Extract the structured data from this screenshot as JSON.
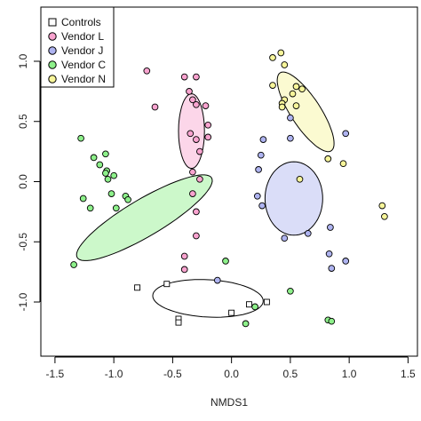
{
  "chart_data": {
    "type": "scatter",
    "xlabel": "NMDS1",
    "ylabel": "",
    "xlim": [
      -1.62,
      1.58
    ],
    "ylim": [
      -1.45,
      1.45
    ],
    "x_ticks": [
      -1.5,
      -1.0,
      -0.5,
      0.0,
      0.5,
      1.0,
      1.5
    ],
    "x_tick_labels": [
      "-1.5",
      "-1.0",
      "-0.5",
      "0.0",
      "0.5",
      "1.0",
      "1.5"
    ],
    "y_ticks": [
      -1.0,
      -0.5,
      0.0,
      0.5,
      1.0
    ],
    "y_tick_labels": [
      "-1.0",
      "-0.5",
      "0.0",
      "0.5",
      "1.0"
    ],
    "grid": false,
    "legend_position": "top-left",
    "series": [
      {
        "name": "Controls",
        "marker": "square",
        "color": "#ffffff",
        "points": [
          [
            -0.8,
            -0.88
          ],
          [
            -0.55,
            -0.85
          ],
          [
            -0.45,
            -1.14
          ],
          [
            -0.45,
            -1.17
          ],
          [
            0.0,
            -1.09
          ],
          [
            0.15,
            -1.02
          ],
          [
            0.3,
            -1.0
          ]
        ],
        "ellipse": {
          "cx": -0.2,
          "cy": -0.97,
          "rx": 0.47,
          "ry": 0.155,
          "angle_deg": -3
        }
      },
      {
        "name": "Vendor L",
        "marker": "circle",
        "color": "#f9a3cf",
        "points": [
          [
            -0.72,
            0.92
          ],
          [
            -0.65,
            0.62
          ],
          [
            -0.4,
            0.87
          ],
          [
            -0.3,
            0.87
          ],
          [
            -0.36,
            0.75
          ],
          [
            -0.33,
            0.68
          ],
          [
            -0.3,
            0.64
          ],
          [
            -0.22,
            0.63
          ],
          [
            -0.2,
            0.47
          ],
          [
            -0.35,
            0.4
          ],
          [
            -0.3,
            0.35
          ],
          [
            -0.2,
            0.37
          ],
          [
            -0.27,
            0.25
          ],
          [
            -0.33,
            0.08
          ],
          [
            -0.27,
            0.02
          ],
          [
            -0.33,
            -0.1
          ],
          [
            -0.3,
            -0.25
          ],
          [
            -0.3,
            -0.45
          ],
          [
            -0.4,
            -0.62
          ],
          [
            -0.4,
            -0.73
          ]
        ],
        "ellipse": {
          "cx": -0.34,
          "cy": 0.42,
          "rx": 0.11,
          "ry": 0.31,
          "angle_deg": 0
        }
      },
      {
        "name": "Vendor J",
        "marker": "circle",
        "color": "#aeb3f0",
        "points": [
          [
            0.5,
            0.53
          ],
          [
            0.5,
            0.36
          ],
          [
            0.27,
            0.35
          ],
          [
            0.97,
            0.4
          ],
          [
            0.82,
            0.19
          ],
          [
            0.25,
            0.22
          ],
          [
            0.23,
            0.1
          ],
          [
            0.22,
            -0.12
          ],
          [
            0.26,
            -0.2
          ],
          [
            0.45,
            -0.47
          ],
          [
            0.65,
            -0.43
          ],
          [
            0.84,
            -0.38
          ],
          [
            0.83,
            -0.6
          ],
          [
            0.97,
            -0.66
          ],
          [
            0.85,
            -0.72
          ],
          [
            -0.12,
            -0.82
          ]
        ],
        "ellipse": {
          "cx": 0.53,
          "cy": -0.14,
          "rx": 0.245,
          "ry": 0.305,
          "angle_deg": 0
        }
      },
      {
        "name": "Vendor C",
        "marker": "circle",
        "color": "#8df08a",
        "points": [
          [
            -1.28,
            0.36
          ],
          [
            -1.17,
            0.2
          ],
          [
            -1.07,
            0.23
          ],
          [
            -1.12,
            0.14
          ],
          [
            -1.06,
            0.09
          ],
          [
            -1.07,
            0.07
          ],
          [
            -1.05,
            0.02
          ],
          [
            -1.0,
            0.05
          ],
          [
            -1.02,
            -0.1
          ],
          [
            -0.9,
            -0.12
          ],
          [
            -0.88,
            -0.15
          ],
          [
            -0.98,
            -0.22
          ],
          [
            -1.26,
            -0.14
          ],
          [
            -1.2,
            -0.22
          ],
          [
            -1.34,
            -0.69
          ],
          [
            -0.05,
            -0.66
          ],
          [
            0.5,
            -0.91
          ],
          [
            0.2,
            -1.04
          ],
          [
            0.82,
            -1.15
          ],
          [
            0.85,
            -1.16
          ],
          [
            0.12,
            -1.18
          ]
        ],
        "ellipse": {
          "cx": -0.74,
          "cy": -0.3,
          "rx": 0.66,
          "ry": 0.155,
          "angle_deg": 30
        }
      },
      {
        "name": "Vendor N",
        "marker": "circle",
        "color": "#f7f59a",
        "points": [
          [
            0.35,
            1.03
          ],
          [
            0.42,
            1.07
          ],
          [
            0.45,
            0.97
          ],
          [
            0.35,
            0.8
          ],
          [
            0.55,
            0.79
          ],
          [
            0.6,
            0.77
          ],
          [
            0.52,
            0.73
          ],
          [
            0.55,
            0.63
          ],
          [
            0.45,
            0.68
          ],
          [
            0.43,
            0.65
          ],
          [
            0.43,
            0.62
          ],
          [
            0.95,
            0.15
          ],
          [
            0.82,
            0.19
          ],
          [
            0.58,
            0.02
          ],
          [
            1.28,
            -0.2
          ],
          [
            1.3,
            -0.29
          ]
        ],
        "ellipse": {
          "cx": 0.63,
          "cy": 0.58,
          "rx": 0.39,
          "ry": 0.125,
          "angle_deg": -56
        }
      }
    ]
  }
}
